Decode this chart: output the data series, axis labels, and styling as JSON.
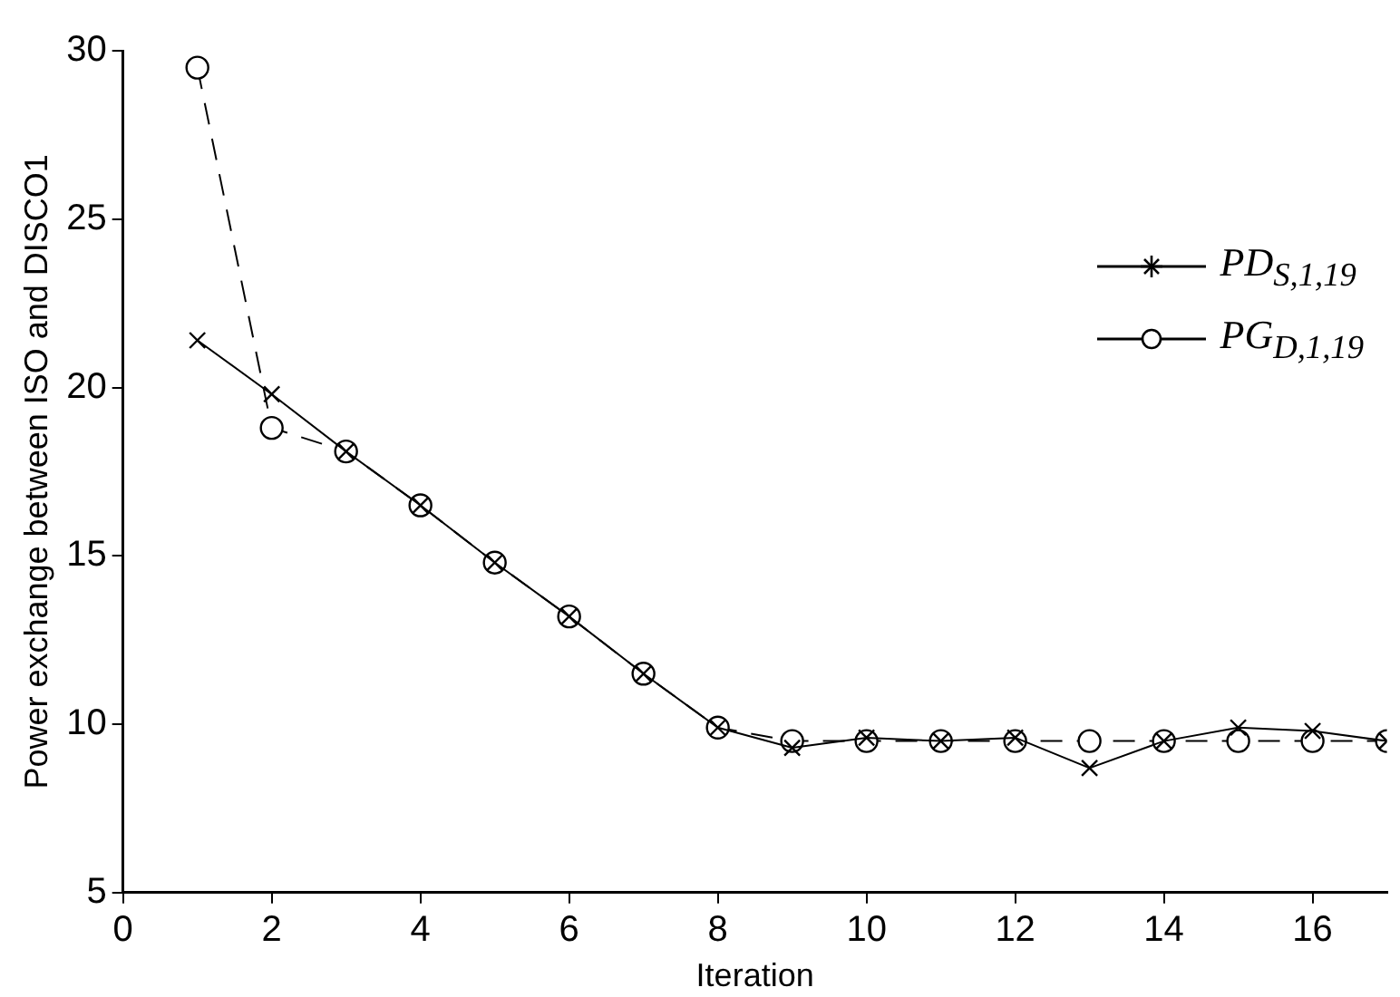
{
  "chart_data": {
    "type": "line",
    "xlabel": "Iteration",
    "ylabel": "Power exchange between ISO and DISCO1",
    "x": [
      1,
      2,
      3,
      4,
      5,
      6,
      7,
      8,
      9,
      10,
      11,
      12,
      13,
      14,
      15,
      16,
      17
    ],
    "series": [
      {
        "name": "PD$_{S,1,19}$",
        "color": "#000000",
        "marker": "cross",
        "line_style": "solid",
        "values": [
          21.4,
          19.8,
          18.1,
          16.5,
          14.8,
          13.2,
          11.5,
          9.9,
          9.3,
          9.6,
          9.5,
          9.6,
          8.7,
          9.5,
          9.9,
          9.8,
          9.5
        ]
      },
      {
        "name": "PG$_{D,1,19}$",
        "color": "#000000",
        "marker": "circle",
        "line_style": "dashed",
        "values": [
          29.5,
          18.8,
          18.1,
          16.5,
          14.8,
          13.2,
          11.5,
          9.9,
          9.5,
          9.5,
          9.5,
          9.5,
          9.5,
          9.5,
          9.5,
          9.5,
          9.5
        ]
      }
    ],
    "xlim": [
      0,
      17
    ],
    "xticks": [
      0,
      2,
      4,
      6,
      8,
      10,
      12,
      14,
      16
    ],
    "ylim": [
      5,
      30
    ],
    "yticks": [
      5,
      10,
      15,
      20,
      25,
      30
    ],
    "grid": false,
    "legend": "top right"
  }
}
